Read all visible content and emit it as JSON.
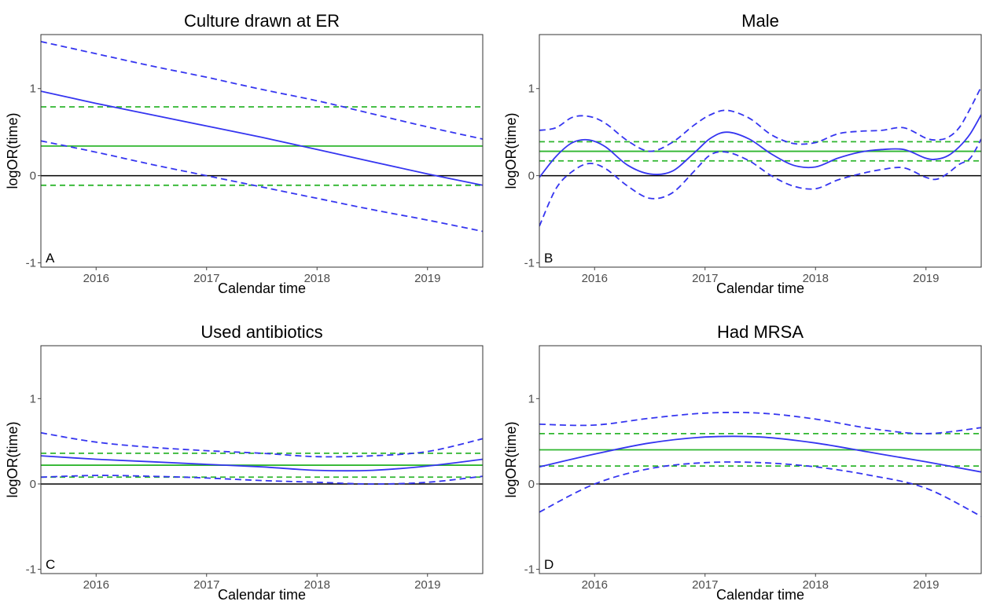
{
  "chart_data": [
    {
      "type": "line",
      "panel_label": "A",
      "title": "Culture drawn at ER",
      "xlabel": "Calendar time",
      "ylabel": "logOR(time)",
      "xlim": [
        2015.5,
        2019.5
      ],
      "ylim": [
        -1.05,
        1.62
      ],
      "x_ticks": [
        2016,
        2017,
        2018,
        2019
      ],
      "x_tick_labels": [
        "2016",
        "2017",
        "2018",
        "2019"
      ],
      "y_ticks": [
        -1,
        0,
        1
      ],
      "y_tick_labels": [
        "-1",
        "0",
        "1"
      ],
      "grid": false,
      "reference_line": 0,
      "constant_estimate": {
        "estimate": 0.34,
        "lower": -0.11,
        "upper": 0.79
      },
      "x": [
        2015.5,
        2016.0,
        2016.5,
        2017.0,
        2017.5,
        2018.0,
        2018.5,
        2019.0,
        2019.5
      ],
      "series": [
        {
          "values": [
            0.97,
            0.83,
            0.7,
            0.57,
            0.44,
            0.3,
            0.16,
            0.02,
            -0.11
          ]
        },
        {
          "values": [
            0.4,
            0.27,
            0.13,
            0.0,
            -0.13,
            -0.26,
            -0.39,
            -0.51,
            -0.64
          ]
        },
        {
          "values": [
            1.54,
            1.4,
            1.26,
            1.13,
            0.99,
            0.86,
            0.71,
            0.56,
            0.42
          ]
        }
      ]
    },
    {
      "type": "line",
      "panel_label": "B",
      "title": "Male",
      "xlabel": "Calendar time",
      "ylabel": "logOR(time)",
      "xlim": [
        2015.5,
        2019.5
      ],
      "ylim": [
        -1.05,
        1.62
      ],
      "x_ticks": [
        2016,
        2017,
        2018,
        2019
      ],
      "x_tick_labels": [
        "2016",
        "2017",
        "2018",
        "2019"
      ],
      "y_ticks": [
        -1,
        0,
        1
      ],
      "y_tick_labels": [
        "-1",
        "0",
        "1"
      ],
      "grid": false,
      "reference_line": 0,
      "constant_estimate": {
        "estimate": 0.28,
        "lower": 0.17,
        "upper": 0.39
      },
      "x": [
        2015.5,
        2015.65,
        2015.8,
        2015.95,
        2016.1,
        2016.3,
        2016.5,
        2016.7,
        2016.9,
        2017.05,
        2017.2,
        2017.4,
        2017.6,
        2017.8,
        2018.0,
        2018.2,
        2018.4,
        2018.6,
        2018.8,
        2019.0,
        2019.1,
        2019.2,
        2019.3,
        2019.4,
        2019.5
      ],
      "series": [
        {
          "values": [
            -0.02,
            0.22,
            0.38,
            0.41,
            0.33,
            0.12,
            0.02,
            0.05,
            0.26,
            0.43,
            0.5,
            0.42,
            0.25,
            0.12,
            0.1,
            0.2,
            0.27,
            0.3,
            0.3,
            0.2,
            0.19,
            0.23,
            0.33,
            0.48,
            0.7
          ]
        },
        {
          "values": [
            -0.58,
            -0.15,
            0.05,
            0.14,
            0.08,
            -0.12,
            -0.26,
            -0.2,
            0.05,
            0.24,
            0.27,
            0.17,
            0.0,
            -0.12,
            -0.15,
            -0.05,
            0.02,
            0.07,
            0.09,
            -0.02,
            -0.04,
            0.03,
            0.13,
            0.2,
            0.42
          ]
        },
        {
          "values": [
            0.52,
            0.55,
            0.67,
            0.68,
            0.6,
            0.4,
            0.28,
            0.38,
            0.58,
            0.7,
            0.75,
            0.66,
            0.47,
            0.37,
            0.38,
            0.48,
            0.51,
            0.52,
            0.55,
            0.43,
            0.41,
            0.44,
            0.55,
            0.77,
            1.02
          ]
        }
      ]
    },
    {
      "type": "line",
      "panel_label": "C",
      "title": "Used antibiotics",
      "xlabel": "Calendar time",
      "ylabel": "logOR(time)",
      "xlim": [
        2015.5,
        2019.5
      ],
      "ylim": [
        -1.05,
        1.62
      ],
      "x_ticks": [
        2016,
        2017,
        2018,
        2019
      ],
      "x_tick_labels": [
        "2016",
        "2017",
        "2018",
        "2019"
      ],
      "y_ticks": [
        -1,
        0,
        1
      ],
      "y_tick_labels": [
        "-1",
        "0",
        "1"
      ],
      "grid": false,
      "reference_line": 0,
      "constant_estimate": {
        "estimate": 0.22,
        "lower": 0.08,
        "upper": 0.36
      },
      "x": [
        2015.5,
        2016.0,
        2016.5,
        2017.0,
        2017.5,
        2018.0,
        2018.5,
        2019.0,
        2019.5
      ],
      "series": [
        {
          "values": [
            0.33,
            0.29,
            0.26,
            0.23,
            0.2,
            0.16,
            0.16,
            0.21,
            0.29
          ]
        },
        {
          "values": [
            0.08,
            0.1,
            0.09,
            0.07,
            0.04,
            0.02,
            0.0,
            0.02,
            0.09
          ]
        },
        {
          "values": [
            0.6,
            0.49,
            0.43,
            0.39,
            0.36,
            0.32,
            0.33,
            0.38,
            0.53
          ]
        }
      ]
    },
    {
      "type": "line",
      "panel_label": "D",
      "title": "Had MRSA",
      "xlabel": "Calendar time",
      "ylabel": "logOR(time)",
      "xlim": [
        2015.5,
        2019.5
      ],
      "ylim": [
        -1.05,
        1.62
      ],
      "x_ticks": [
        2016,
        2017,
        2018,
        2019
      ],
      "x_tick_labels": [
        "2016",
        "2017",
        "2018",
        "2019"
      ],
      "y_ticks": [
        -1,
        0,
        1
      ],
      "y_tick_labels": [
        "-1",
        "0",
        "1"
      ],
      "grid": false,
      "reference_line": 0,
      "constant_estimate": {
        "estimate": 0.4,
        "lower": 0.21,
        "upper": 0.59
      },
      "x": [
        2015.5,
        2016.0,
        2016.5,
        2017.0,
        2017.5,
        2018.0,
        2018.5,
        2019.0,
        2019.5
      ],
      "series": [
        {
          "values": [
            0.2,
            0.35,
            0.48,
            0.55,
            0.55,
            0.48,
            0.37,
            0.26,
            0.14
          ]
        },
        {
          "values": [
            -0.33,
            0.0,
            0.18,
            0.25,
            0.25,
            0.2,
            0.1,
            -0.05,
            -0.38
          ]
        },
        {
          "values": [
            0.7,
            0.69,
            0.77,
            0.83,
            0.83,
            0.76,
            0.65,
            0.59,
            0.66
          ]
        }
      ]
    }
  ]
}
